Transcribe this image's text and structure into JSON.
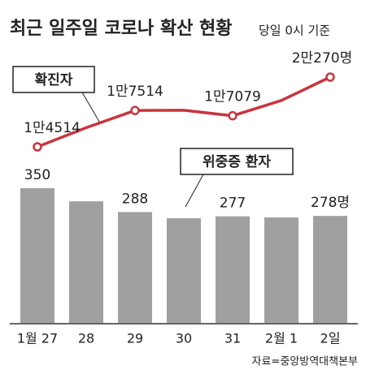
{
  "chart_data": {
    "type": "combo",
    "title": "최근 일주일 코로나 확산 현황",
    "subtitle": "당일 0시 기준",
    "source": "자료=중앙방역대책본부",
    "categories": [
      "1월 27",
      "28",
      "29",
      "30",
      "31",
      "2월 1",
      "2일"
    ],
    "series": [
      {
        "name": "확진자",
        "type": "line",
        "color": "#c9343e",
        "values": [
          14514,
          16096,
          17514,
          17532,
          17079,
          18342,
          20270
        ],
        "value_labels": [
          "1만4514",
          null,
          "1만7514",
          null,
          "1만7079",
          null,
          "2만270명"
        ]
      },
      {
        "name": "위중증 환자",
        "type": "bar",
        "color": "#a0a0a0",
        "values": [
          350,
          316,
          288,
          272,
          277,
          274,
          278
        ],
        "value_labels": [
          "350",
          null,
          "288",
          null,
          "277",
          null,
          "278명"
        ]
      }
    ]
  }
}
